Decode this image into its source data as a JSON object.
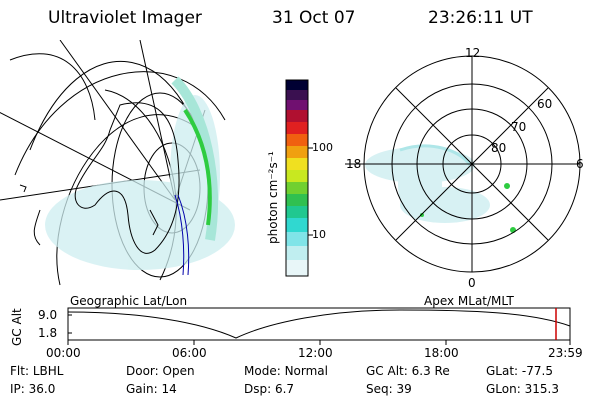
{
  "header": {
    "title": "Ultraviolet Imager",
    "date": "31 Oct 07",
    "time": "23:26:11 UT"
  },
  "colorbar": {
    "unit_label": "photon cm⁻²s⁻¹",
    "ticks": [
      "100",
      "10"
    ]
  },
  "polar_plot": {
    "clock_labels": {
      "top": "12",
      "bottom": "0",
      "left": "18",
      "right": "6"
    },
    "lat_labels": [
      "60",
      "70",
      "80"
    ]
  },
  "footer_panel": {
    "left_label": "Geographic Lat/Lon",
    "right_label": "Apex MLat/MLT",
    "y_axis_label": "GC Alt",
    "y_ticks": [
      "9.0",
      "1.8"
    ],
    "x_ticks": [
      "00:00",
      "06:00",
      "12:00",
      "18:00",
      "23:59"
    ]
  },
  "info": {
    "row1": [
      {
        "key": "Flt:",
        "value": "LBHL"
      },
      {
        "key": "Door:",
        "value": "Open"
      },
      {
        "key": "Mode:",
        "value": "Normal"
      },
      {
        "key": "GC Alt:",
        "value": "6.3 Re"
      },
      {
        "key": "GLat:",
        "value": "-77.5"
      }
    ],
    "row2": [
      {
        "key": "IP:",
        "value": "36.0"
      },
      {
        "key": "Gain:",
        "value": "14"
      },
      {
        "key": "Dsp:",
        "value": "6.7"
      },
      {
        "key": "Seq:",
        "value": "39"
      },
      {
        "key": "GLon:",
        "value": "315.3"
      }
    ]
  },
  "colors": {
    "aurora_cyan": "#aee6e8",
    "aurora_green": "#2ecc40",
    "time_marker": "#cc0000",
    "coast_blue": "#0000aa"
  }
}
